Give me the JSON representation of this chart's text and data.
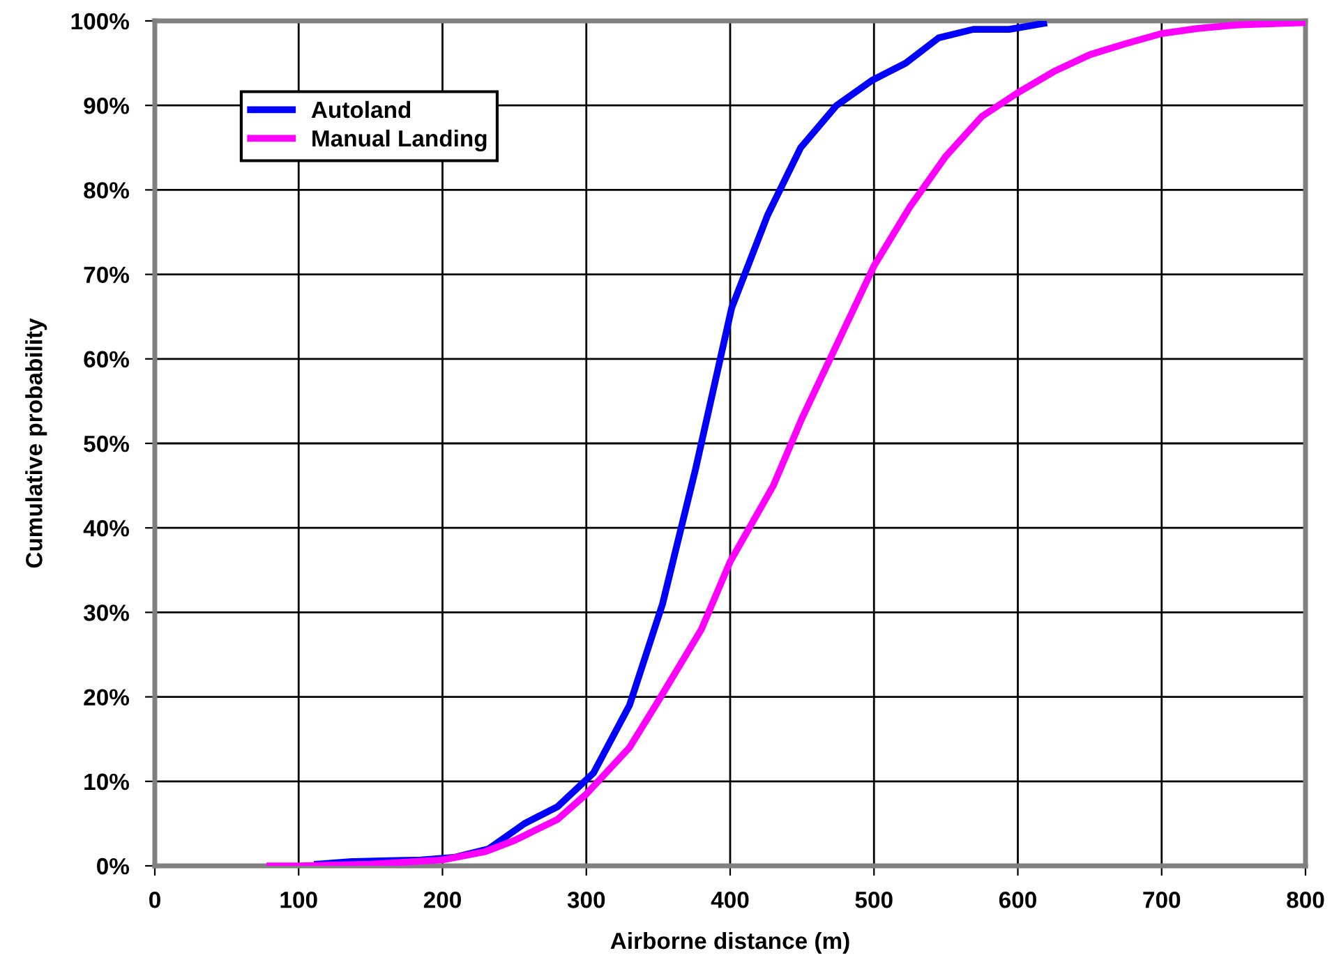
{
  "chart_data": {
    "type": "line",
    "xlabel": "Airborne distance (m)",
    "ylabel": "Cumulative probability",
    "xlim": [
      0,
      800
    ],
    "xticks": [
      0,
      100,
      200,
      300,
      400,
      500,
      600,
      700,
      800
    ],
    "ylim": [
      0,
      100
    ],
    "yticks": [
      {
        "value": 0,
        "label": "0%"
      },
      {
        "value": 10,
        "label": "10%"
      },
      {
        "value": 20,
        "label": "20%"
      },
      {
        "value": 30,
        "label": "30%"
      },
      {
        "value": 40,
        "label": "40%"
      },
      {
        "value": 50,
        "label": "50%"
      },
      {
        "value": 60,
        "label": "60%"
      },
      {
        "value": 70,
        "label": "70%"
      },
      {
        "value": 80,
        "label": "80%"
      },
      {
        "value": 90,
        "label": "90%"
      },
      {
        "value": 100,
        "label": "100%"
      }
    ],
    "grid": true,
    "legend": "top left",
    "marker": "none",
    "line_style": "solid",
    "series": [
      {
        "name": "Autoland",
        "color": "#0000ff",
        "x": [
          113,
          137,
          162,
          185,
          208,
          232,
          257,
          280,
          305,
          330,
          353,
          376,
          401,
          426,
          449,
          474,
          499,
          522,
          545,
          569,
          594,
          618
        ],
        "values": [
          0.2,
          0.5,
          0.6,
          0.7,
          1.0,
          2.0,
          5.0,
          7.0,
          11,
          19,
          31,
          47,
          66,
          77,
          85,
          90,
          93,
          95,
          98,
          99,
          99,
          99.7
        ]
      },
      {
        "name": "Manual Landing",
        "color": "#ff00ff",
        "x": [
          80,
          100,
          150,
          200,
          230,
          250,
          280,
          300,
          330,
          350,
          380,
          400,
          430,
          450,
          475,
          500,
          525,
          550,
          575,
          600,
          625,
          650,
          675,
          700,
          725,
          750,
          800
        ],
        "values": [
          0,
          0,
          0.2,
          0.7,
          1.7,
          3,
          5.5,
          8.5,
          14,
          19.5,
          28,
          36,
          45,
          53,
          62,
          71,
          78,
          84,
          88.7,
          91.5,
          94,
          96,
          97.3,
          98.5,
          99.1,
          99.5,
          99.8
        ]
      }
    ]
  }
}
